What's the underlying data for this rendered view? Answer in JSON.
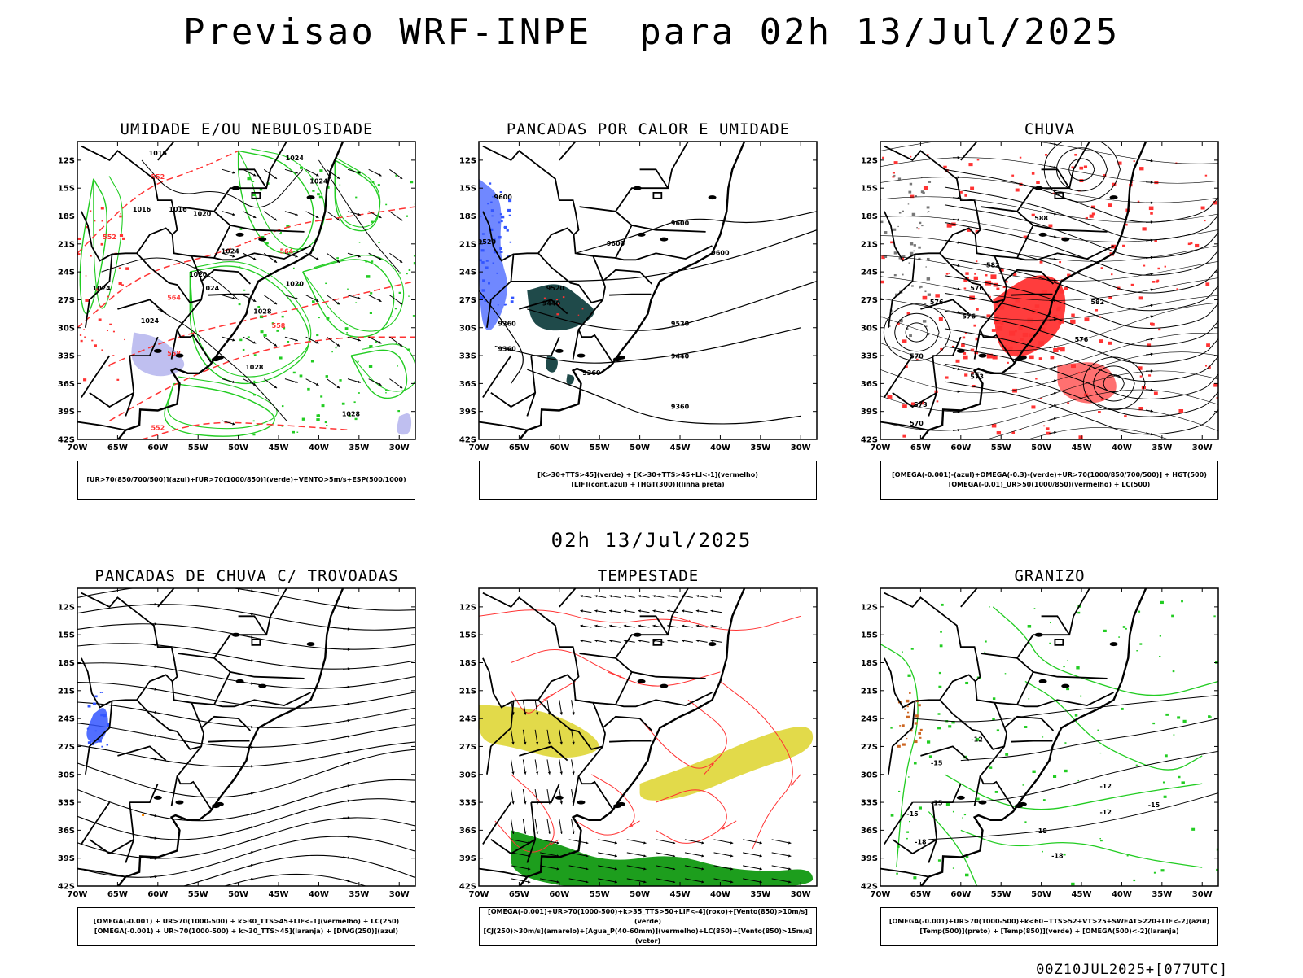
{
  "page": {
    "title": "Previsao WRF-INPE  para 02h 13/Jul/2025",
    "subtitle": "02h 13/Jul/2025",
    "footer": "00Z10JUL2025+[077UTC]"
  },
  "axes": {
    "lat_labels": [
      "12S",
      "15S",
      "18S",
      "21S",
      "24S",
      "27S",
      "30S",
      "33S",
      "36S",
      "39S",
      "42S"
    ],
    "lon_labels": [
      "70W",
      "65W",
      "60W",
      "55W",
      "50W",
      "45W",
      "40W",
      "35W",
      "30W"
    ],
    "lat_range": [
      -42,
      -10
    ],
    "lon_range": [
      -70,
      -28
    ]
  },
  "colors": {
    "green": "#22cc22",
    "red": "#ff3333",
    "blue": "#3355ff",
    "lavender": "#b8b8ee",
    "teal": "#1f4a4a",
    "yellow": "#e0d840",
    "dark_green": "#119911"
  },
  "chart_data": [
    {
      "type": "map",
      "title": "UMIDADE E/OU NEBULOSIDADE",
      "legend": [
        "[UR>70(850/700/500)](azul)+[UR>70(1000/850)](verde)+VENTO>5m/s+ESP(500/1000)"
      ],
      "contour_labels": [
        "1016",
        "1016",
        "1016",
        "1020",
        "1020",
        "1020",
        "1024",
        "1024",
        "1024",
        "1024",
        "1024",
        "1028",
        "1028",
        "1028",
        "1024"
      ],
      "thickness_labels": [
        "552",
        "552",
        "558",
        "564",
        "564",
        "558",
        "552"
      ]
    },
    {
      "type": "map",
      "title": "PANCADAS POR CALOR E UMIDADE",
      "legend": [
        "[K>30+TTS>45](verde) + [K>30+TTS>45+LI<-1](vermelho)",
        "[LIF](cont.azul) + [HGT(300)](linha preta)"
      ],
      "contour_labels": [
        "9600",
        "9600",
        "9600",
        "9600",
        "9520",
        "9520",
        "9520",
        "9440",
        "9440",
        "9360",
        "9360",
        "9360",
        "9360"
      ]
    },
    {
      "type": "map",
      "title": "CHUVA",
      "legend": [
        "[OMEGA(-0.001)-(azul)+OMEGA(-0.3)-(verde)+UR>70(1000/850/700/500)] + HGT(500)",
        "[OMEGA(-0.01)_UR>50(1000/850)(vermelho) + LC(500)"
      ],
      "contour_labels": [
        "588",
        "582",
        "576",
        "570",
        "576",
        "576",
        "582",
        "576",
        "573",
        "573",
        "570"
      ]
    },
    {
      "type": "map",
      "title": "PANCADAS DE CHUVA C/ TROVOADAS",
      "legend": [
        "[OMEGA(-0.001) + UR>70(1000-500) + k>30_TTS>45+LIF<-1](vermelho) + LC(250)",
        "[OMEGA(-0.001) + UR>70(1000-500) + k>30_TTS>45](laranja) + [DIVG(250)](azul)"
      ]
    },
    {
      "type": "map",
      "title": "TEMPESTADE",
      "legend": [
        "[OMEGA(-0.001)+UR>70(1000-500)+k>35_TTS>50+LIF<-4](roxo)+[Vento(850)>10m/s](verde)",
        "[CJ(250)>30m/s](amarelo)+[Agua_P(40-60mm)](vermelho)+LC(850)+[Vento(850)>15m/s](vetor)"
      ]
    },
    {
      "type": "map",
      "title": "GRANIZO",
      "legend": [
        "[OMEGA(-0.001)+UR>70(1000-500)+k<60+TTS>52+VT>25+SWEAT>220+LIF<-2](azul)",
        "[Temp(500)](preto) + [Temp(850)](verde) + [OMEGA(500)<-2](laranja)"
      ],
      "contour_labels": [
        "-12",
        "-15",
        "-12",
        "-15",
        "-12",
        "-15",
        "-18",
        "-15",
        "-18",
        "-18"
      ]
    }
  ]
}
